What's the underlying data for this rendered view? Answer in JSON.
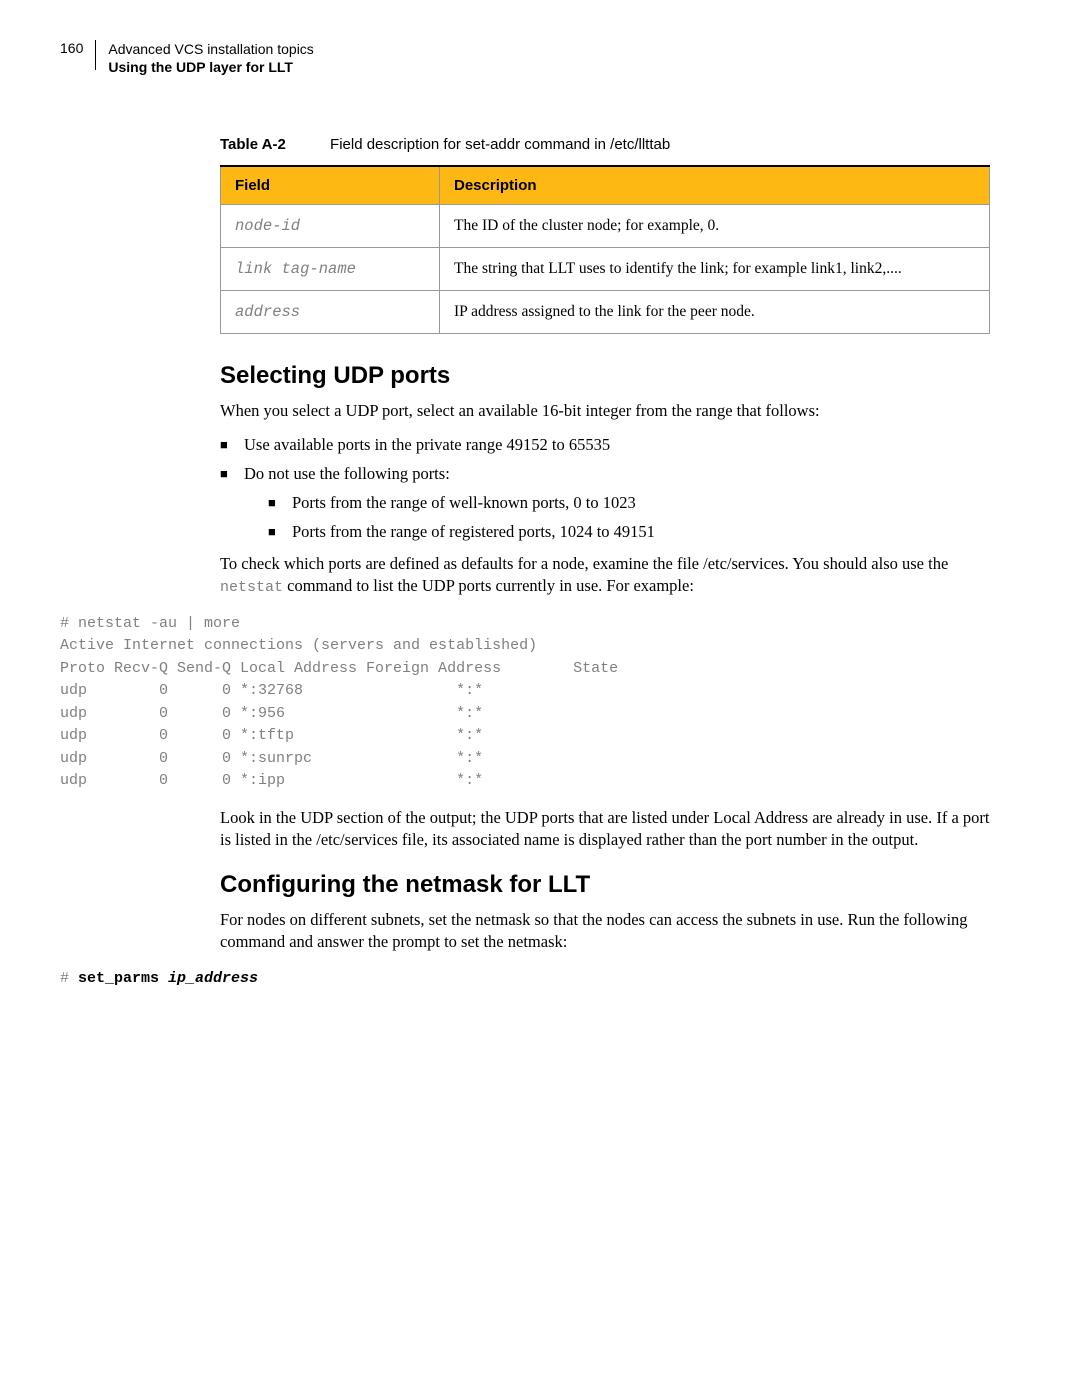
{
  "header": {
    "page_number": "160",
    "line1": "Advanced VCS installation topics",
    "line2": "Using the UDP layer for LLT"
  },
  "table_caption": {
    "label": "Table A-2",
    "text": "Field description for set-addr command in /etc/llttab"
  },
  "table": {
    "col1_header": "Field",
    "col2_header": "Description",
    "rows": [
      {
        "field": "node-id",
        "desc": "The ID of the cluster node; for example, 0."
      },
      {
        "field": "link tag-name",
        "desc": "The string that LLT uses to identify the link; for example link1, link2,...."
      },
      {
        "field": "address",
        "desc": "IP address assigned to the link for the peer node."
      }
    ]
  },
  "section1": {
    "heading": "Selecting UDP ports",
    "para1": "When you select a UDP port, select an available 16-bit integer from the range that follows:",
    "bullet1": "Use available ports in the private range 49152 to 65535",
    "bullet2": "Do not use the following ports:",
    "nested1": "Ports from the range of well-known ports, 0 to 1023",
    "nested2": "Ports from the range of registered ports, 1024 to 49151",
    "para2_a": "To check which ports are defined as defaults for a node, examine the file /etc/services. You should also use the ",
    "para2_code": "netstat",
    "para2_b": " command to list the UDP ports currently in use. For example:",
    "code": "# netstat -au | more\nActive Internet connections (servers and established)\nProto Recv-Q Send-Q Local Address Foreign Address        State\nudp        0      0 *:32768                 *:*\nudp        0      0 *:956                   *:*\nudp        0      0 *:tftp                  *:*\nudp        0      0 *:sunrpc                *:*\nudp        0      0 *:ipp                   *:*",
    "para3": "Look in the UDP section of the output; the UDP ports that are listed under Local Address are already in use. If a port is listed in the /etc/services file, its associated name is displayed rather than the port number in the output."
  },
  "section2": {
    "heading": "Configuring the netmask for LLT",
    "para1": "For nodes on different subnets, set the netmask so that the nodes can access the subnets in use. Run the following command and answer the prompt to set the netmask:",
    "code_prefix": "# ",
    "code_bold": "set_parms ",
    "code_italic": "ip_address"
  }
}
